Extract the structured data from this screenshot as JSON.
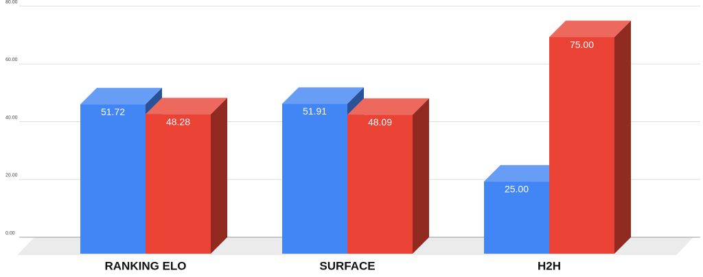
{
  "chart_data": {
    "type": "bar3d",
    "categories": [
      "RANKING ELO",
      "SURFACE",
      "H2H"
    ],
    "series": [
      {
        "color": "#4285f4",
        "values": [
          51.72,
          51.91,
          25.0
        ],
        "value_labels": [
          "51.72",
          "51.91",
          "25.00"
        ]
      },
      {
        "color": "#ea4335",
        "values": [
          48.28,
          48.09,
          75.0
        ],
        "value_labels": [
          "48.28",
          "48.09",
          "75.00"
        ]
      }
    ],
    "ylim": [
      0,
      80
    ],
    "yticks": [
      {
        "value": 0,
        "label": "0.00"
      },
      {
        "value": 20,
        "label": "20.00"
      },
      {
        "value": 40,
        "label": "40.00"
      },
      {
        "value": 60,
        "label": "60.00"
      },
      {
        "value": 80,
        "label": "80.00"
      }
    ],
    "grid": true
  }
}
